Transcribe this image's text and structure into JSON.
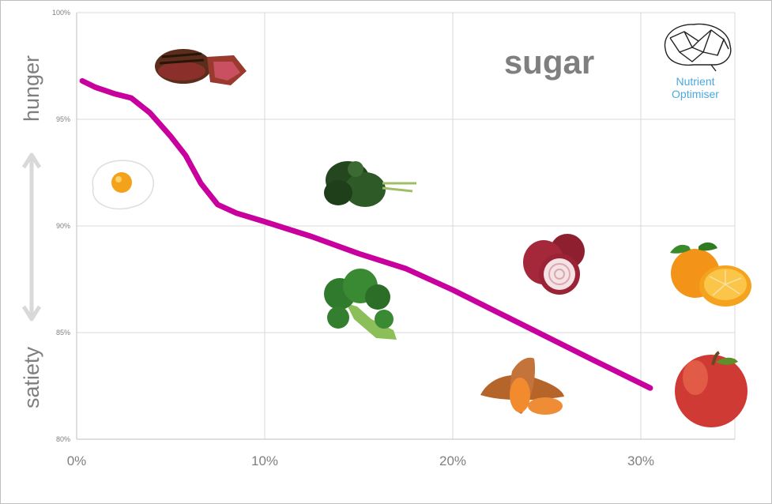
{
  "chart_data": {
    "type": "line",
    "title": "sugar",
    "xlabel": "",
    "ylabel": "",
    "x_tick_labels": [
      "0%",
      "10%",
      "20%",
      "30%"
    ],
    "y_tick_labels": [
      "80%",
      "85%",
      "90%",
      "95%",
      "100%"
    ],
    "xlim": [
      0,
      35
    ],
    "ylim": [
      80,
      100
    ],
    "grid": true,
    "line_color": "#c8009e",
    "series": [
      {
        "x": [
          0.3,
          1.0,
          2.0,
          2.9,
          3.9,
          5.0,
          5.8,
          6.6,
          7.5,
          8.5,
          10.0,
          12.5,
          15.0,
          17.5,
          20.0,
          22.5,
          25.0,
          27.5,
          30.5
        ],
        "y": [
          96.8,
          96.5,
          96.2,
          96.0,
          95.3,
          94.2,
          93.3,
          92.0,
          91.0,
          90.6,
          90.2,
          89.5,
          88.7,
          88.0,
          87.0,
          85.9,
          84.8,
          83.7,
          82.4
        ]
      }
    ],
    "side_labels": {
      "top": "hunger",
      "bottom": "satiety"
    },
    "brand": {
      "line1": "Nutrient",
      "line2": "Optimiser"
    },
    "food_icons": [
      "steak-icon",
      "egg-icon",
      "kale-icon",
      "broccoli-icon",
      "onion-icon",
      "sweet-potato-icon",
      "orange-icon",
      "apple-icon"
    ]
  }
}
